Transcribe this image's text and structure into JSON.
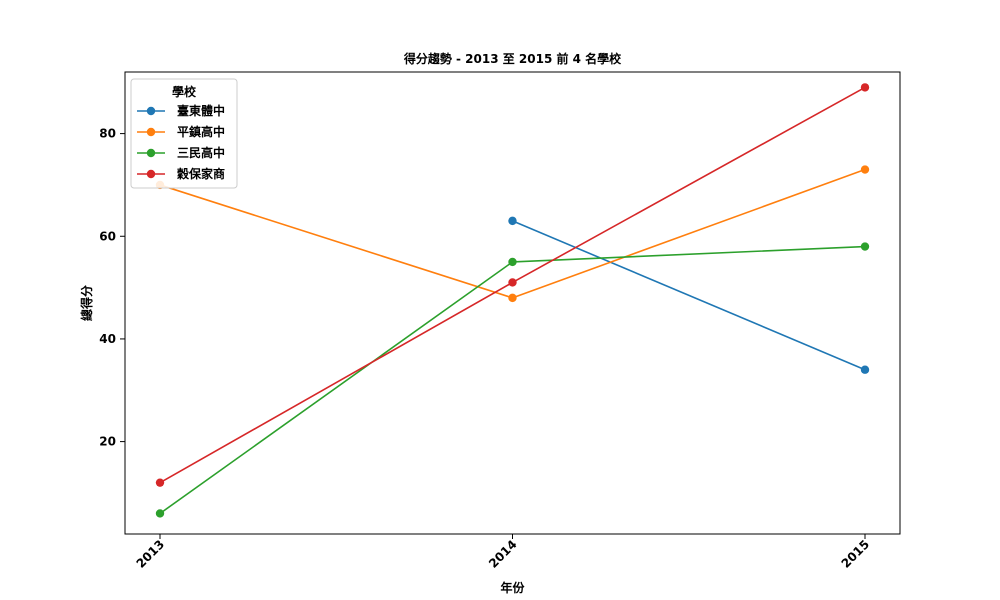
{
  "chart_data": {
    "type": "line",
    "title": "得分趨勢 - 2013 至 2015 前 4 名學校",
    "xlabel": "年份",
    "ylabel": "總得分",
    "x": [
      "2013",
      "2014",
      "2015"
    ],
    "y_ticks": [
      20,
      40,
      60,
      80
    ],
    "ylim": [
      2,
      92
    ],
    "grid": false,
    "legend": {
      "title": "學校",
      "placement": "top-left"
    },
    "series": [
      {
        "name": "臺東體中",
        "color": "#1f77b4",
        "values": [
          null,
          63,
          34
        ]
      },
      {
        "name": "平鎮高中",
        "color": "#ff7f0e",
        "values": [
          70,
          48,
          73
        ]
      },
      {
        "name": "三民高中",
        "color": "#2ca02c",
        "values": [
          6,
          55,
          58
        ]
      },
      {
        "name": "穀保家商",
        "color": "#d62728",
        "values": [
          12,
          51,
          89
        ]
      }
    ]
  }
}
